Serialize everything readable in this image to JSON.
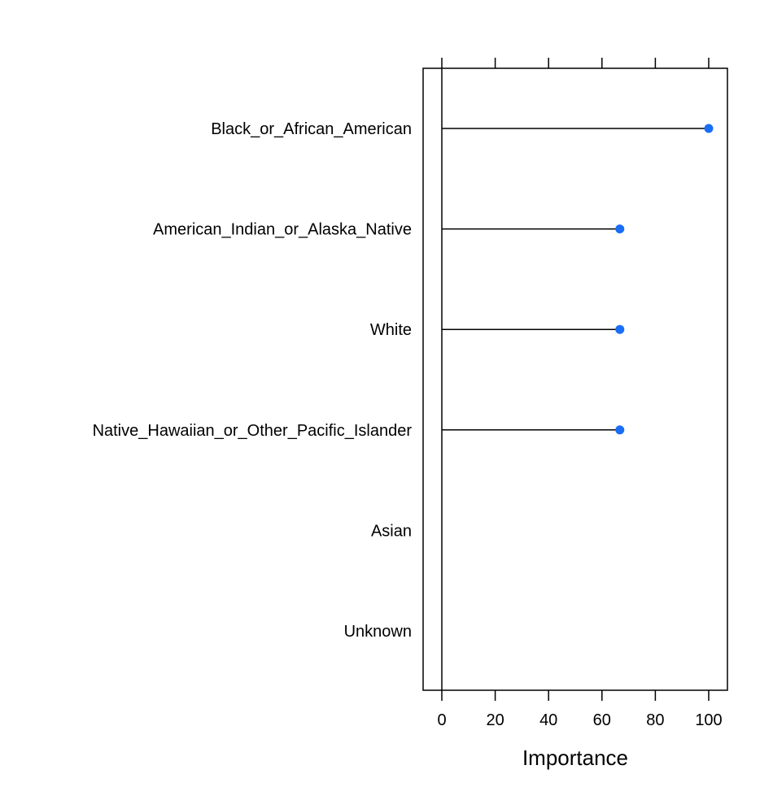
{
  "chart_data": {
    "type": "dot",
    "title": "",
    "xlabel": "Importance",
    "ylabel": "",
    "xlim": [
      -7,
      107
    ],
    "xticks": [
      0,
      20,
      40,
      60,
      80,
      100
    ],
    "xtick_labels": [
      "0",
      "20",
      "40",
      "60",
      "80",
      "100"
    ],
    "grid": false,
    "marker_color": "#1a6ef5",
    "categories": [
      "Black_or_African_American",
      "American_Indian_or_Alaska_Native",
      "White",
      "Native_Hawaiian_or_Other_Pacific_Islander",
      "Asian",
      "Unknown"
    ],
    "values": [
      100,
      66.7,
      66.7,
      66.7,
      null,
      null
    ]
  }
}
